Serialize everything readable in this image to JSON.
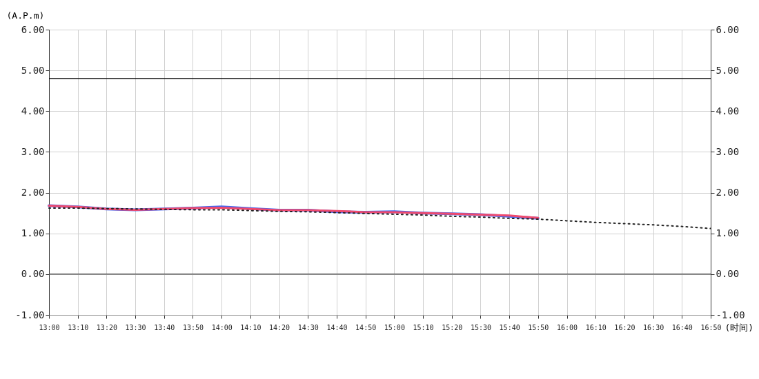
{
  "chart_data": {
    "type": "line",
    "xlabel": "(时间)",
    "ylabel": "(A.P.m)",
    "x": [
      13,
      13.1667,
      13.3333,
      13.5,
      13.6667,
      13.8333,
      14,
      14.1667,
      14.3333,
      14.5,
      14.6667,
      14.8333,
      15,
      15.1667,
      15.3333,
      15.5,
      15.6667,
      15.8333,
      16,
      16.1667,
      16.3333,
      16.5,
      16.6667,
      16.8333
    ],
    "series": [
      {
        "color": "#4466ee",
        "values": [
          1.68,
          1.65,
          1.6,
          1.58,
          1.6,
          1.62,
          1.65,
          1.61,
          1.57,
          1.57,
          1.53,
          1.52,
          1.53,
          1.5,
          1.48,
          1.46,
          1.42,
          1.37,
          null,
          null,
          null,
          null,
          null,
          null
        ]
      },
      {
        "color": "#f04a6e",
        "values": [
          1.68,
          1.65,
          1.6,
          1.58,
          1.6,
          1.62,
          1.63,
          1.6,
          1.57,
          1.57,
          1.55,
          1.52,
          1.52,
          1.5,
          1.48,
          1.46,
          1.44,
          1.38,
          null,
          null,
          null,
          null,
          null,
          null
        ]
      },
      {
        "color": "#222222",
        "line_style": "dotted",
        "values": [
          1.62,
          1.62,
          1.61,
          1.6,
          1.59,
          1.58,
          1.58,
          1.56,
          1.54,
          1.53,
          1.51,
          1.49,
          1.47,
          1.45,
          1.42,
          1.4,
          1.37,
          1.35,
          1.31,
          1.27,
          1.24,
          1.21,
          1.17,
          1.12
        ]
      }
    ],
    "xlim": [
      13,
      16.8333
    ],
    "xticks": [
      {
        "value": 13,
        "label": "13:00"
      },
      {
        "value": 13.1667,
        "label": "13:10"
      },
      {
        "value": 13.3333,
        "label": "13:20"
      },
      {
        "value": 13.5,
        "label": "13:30"
      },
      {
        "value": 13.6667,
        "label": "13:40"
      },
      {
        "value": 13.8333,
        "label": "13:50"
      },
      {
        "value": 14,
        "label": "14:00"
      },
      {
        "value": 14.1667,
        "label": "14:10"
      },
      {
        "value": 14.3333,
        "label": "14:20"
      },
      {
        "value": 14.5,
        "label": "14:30"
      },
      {
        "value": 14.6667,
        "label": "14:40"
      },
      {
        "value": 14.8333,
        "label": "14:50"
      },
      {
        "value": 15,
        "label": "15:00"
      },
      {
        "value": 15.1667,
        "label": "15:10"
      },
      {
        "value": 15.3333,
        "label": "15:20"
      },
      {
        "value": 15.5,
        "label": "15:30"
      },
      {
        "value": 15.6667,
        "label": "15:40"
      },
      {
        "value": 15.8333,
        "label": "15:50"
      },
      {
        "value": 16,
        "label": "16:00"
      },
      {
        "value": 16.1667,
        "label": "16:10"
      },
      {
        "value": 16.3333,
        "label": "16:20"
      },
      {
        "value": 16.5,
        "label": "16:30"
      },
      {
        "value": 16.6667,
        "label": "16:40"
      },
      {
        "value": 16.8333,
        "label": "16:50"
      }
    ],
    "ylim": [
      -1,
      6
    ],
    "yticks": [
      {
        "value": -1,
        "label": "-1.00"
      },
      {
        "value": 0,
        "label": "0.00"
      },
      {
        "value": 1,
        "label": "1.00"
      },
      {
        "value": 2,
        "label": "2.00"
      },
      {
        "value": 3,
        "label": "3.00"
      },
      {
        "value": 4,
        "label": "4.00"
      },
      {
        "value": 5,
        "label": "5.00"
      },
      {
        "value": 6,
        "label": "6.00"
      }
    ],
    "y2lim": [
      -1,
      6
    ],
    "y2ticks": [
      {
        "value": -1,
        "label": "-1.00"
      },
      {
        "value": 0,
        "label": "0.00"
      },
      {
        "value": 1,
        "label": "1.00"
      },
      {
        "value": 2,
        "label": "2.00"
      },
      {
        "value": 3,
        "label": "3.00"
      },
      {
        "value": 4,
        "label": "4.00"
      },
      {
        "value": 5,
        "label": "5.00"
      },
      {
        "value": 6,
        "label": "6.00"
      }
    ],
    "ref_lines": [
      {
        "axis": "y",
        "value": 4.8,
        "color": "#111111"
      },
      {
        "axis": "y",
        "value": 0,
        "color": "#555555"
      }
    ],
    "grid": true,
    "legend": false,
    "marker": "none",
    "line_style": "solid"
  }
}
